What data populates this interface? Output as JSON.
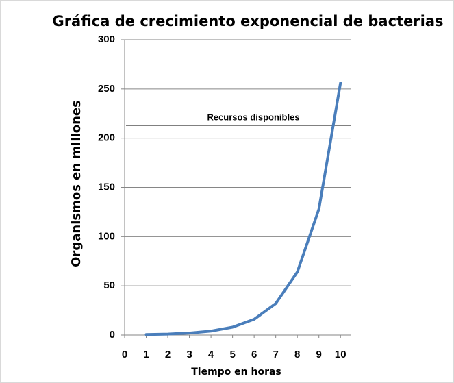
{
  "chart_data": {
    "type": "line",
    "title": "Gráfica de crecimiento exponencial de bacterias",
    "x_label": "Tiempo en horas",
    "y_label": "Organismos en millones",
    "x": [
      1,
      2,
      3,
      4,
      5,
      6,
      7,
      8,
      9,
      10
    ],
    "series": [
      {
        "color": "#4a7ebb",
        "values": [
          0.5,
          1,
          2,
          4,
          8,
          16,
          32,
          64,
          128,
          256
        ]
      }
    ],
    "xlim": [
      0,
      10.5
    ],
    "xticks": [
      0,
      1,
      2,
      3,
      4,
      5,
      6,
      7,
      8,
      9,
      10
    ],
    "ylim": [
      0,
      300
    ],
    "yticks": [
      0,
      50,
      100,
      150,
      200,
      250,
      300
    ],
    "grid": true,
    "reference_line": {
      "value": 213,
      "label": "Recursos disponibles"
    }
  }
}
